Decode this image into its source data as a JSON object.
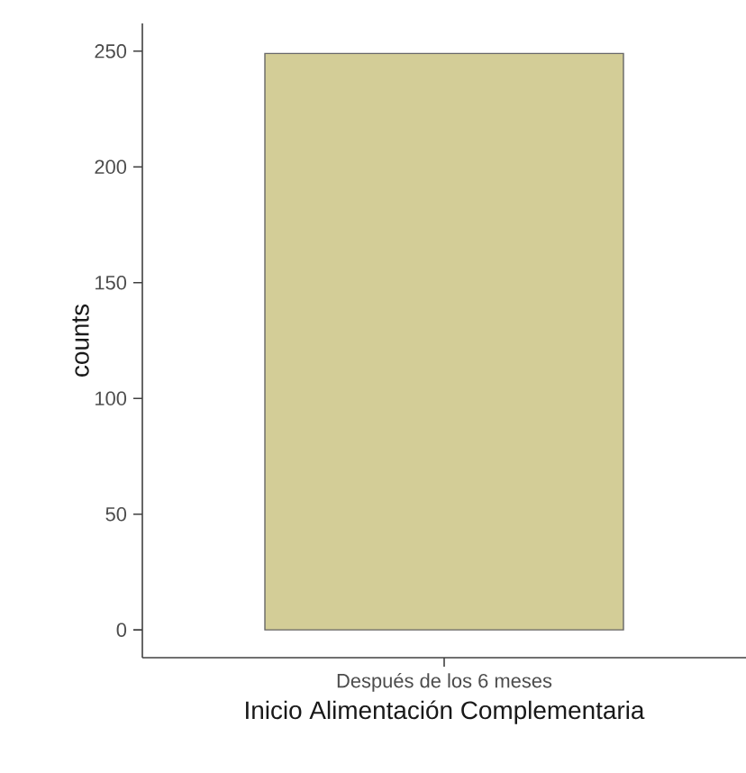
{
  "chart_data": {
    "type": "bar",
    "categories": [
      "Después de los 6 meses"
    ],
    "values": [
      249
    ],
    "color": "#d3cd97",
    "xlabel": "Inicio Alimentación Complementaria",
    "ylabel": "counts",
    "ylim": [
      -12,
      262
    ],
    "yticks": [
      0,
      50,
      100,
      150,
      200,
      250
    ]
  }
}
